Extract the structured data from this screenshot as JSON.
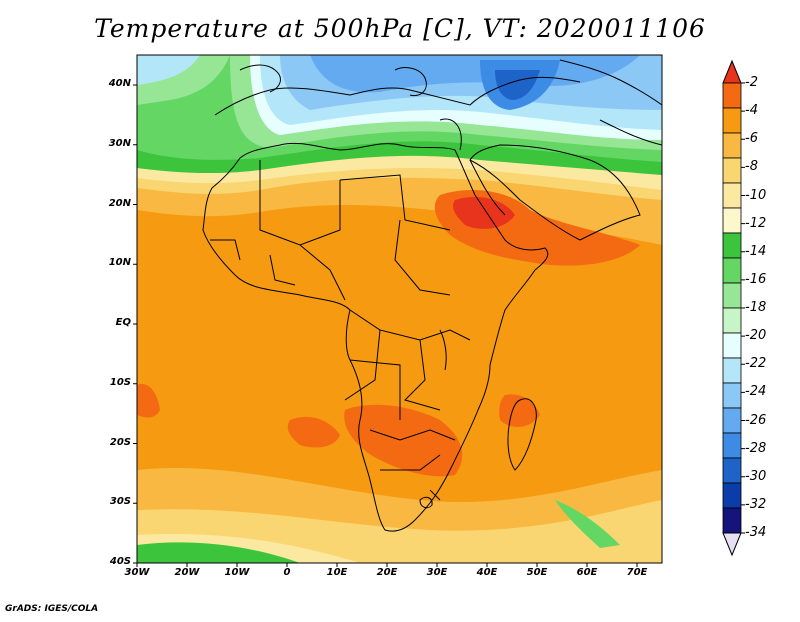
{
  "title": "Temperature at 500hPa [C], VT: 2020011106",
  "credit": "GrADS: IGES/COLA",
  "map": {
    "lat_labels": [
      "40N",
      "30N",
      "20N",
      "10N",
      "EQ",
      "10S",
      "20S",
      "30S",
      "40S"
    ],
    "lon_labels": [
      "30W",
      "20W",
      "10W",
      "0",
      "10E",
      "20E",
      "30E",
      "40E",
      "50E",
      "60E",
      "70E"
    ]
  },
  "colorbar": {
    "labels": [
      "-2",
      "-4",
      "-6",
      "-8",
      "-10",
      "-12",
      "-14",
      "-16",
      "-18",
      "-20",
      "-22",
      "-24",
      "-26",
      "-28",
      "-30",
      "-32",
      "-34"
    ],
    "colors": [
      "#e8341c",
      "#f46a12",
      "#f69a12",
      "#f8b842",
      "#fad672",
      "#fbe9a2",
      "#fdf7cc",
      "#3cc43c",
      "#64d664",
      "#96e696",
      "#c8f5c8",
      "#e6fefe",
      "#b4e6fa",
      "#8cc8f5",
      "#64aaf0",
      "#3c8ce6",
      "#1e64c8",
      "#0a3caa",
      "#14147a",
      "#e6e0f5"
    ]
  }
}
